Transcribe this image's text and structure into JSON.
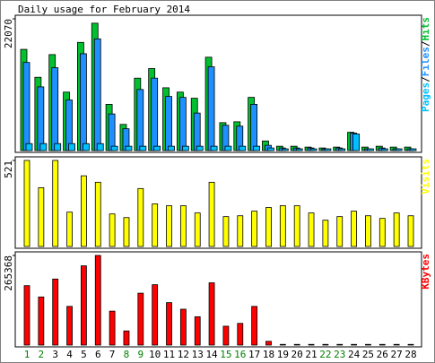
{
  "chart_data": [
    {
      "type": "bar",
      "title": "Daily usage for February 2014",
      "separator": "/",
      "categories": [
        "1",
        "2",
        "3",
        "4",
        "5",
        "6",
        "7",
        "8",
        "9",
        "10",
        "11",
        "12",
        "13",
        "14",
        "15",
        "16",
        "17",
        "18",
        "19",
        "20",
        "21",
        "22",
        "23",
        "24",
        "25",
        "26",
        "27",
        "28"
      ],
      "category_colors": [
        "#008000",
        "#008000",
        "#000000",
        "#000000",
        "#000000",
        "#000000",
        "#000000",
        "#008000",
        "#008000",
        "#000000",
        "#000000",
        "#000000",
        "#000000",
        "#000000",
        "#008000",
        "#008000",
        "#000000",
        "#000000",
        "#000000",
        "#000000",
        "#000000",
        "#008000",
        "#008000",
        "#000000",
        "#000000",
        "#000000",
        "#000000",
        "#000000"
      ],
      "ylim": [
        0,
        22070
      ],
      "yticks": [
        22070
      ],
      "series": [
        {
          "name": "Hits",
          "color": "#00c030",
          "values": [
            16955,
            12277,
            16077,
            9793,
            18124,
            21339,
            7746,
            4385,
            12131,
            13739,
            10523,
            9793,
            8770,
            15639,
            4677,
            4823,
            8916,
            1608,
            731,
            731,
            585,
            438,
            585,
            3069,
            585,
            731,
            585,
            585
          ]
        },
        {
          "name": "Files",
          "color": "#1e90ff",
          "values": [
            14762,
            10670,
            13885,
            8477,
            16224,
            18708,
            6139,
            3654,
            10231,
            12131,
            9062,
            8916,
            6285,
            14031,
            4239,
            4092,
            7746,
            877,
            438,
            438,
            438,
            292,
            438,
            2923,
            292,
            438,
            292,
            292
          ]
        },
        {
          "name": "Pages",
          "color": "#00c0ff",
          "values": [
            1169,
            1169,
            1169,
            1169,
            1169,
            1169,
            731,
            731,
            731,
            731,
            731,
            731,
            731,
            731,
            731,
            731,
            731,
            438,
            292,
            292,
            292,
            292,
            292,
            2777,
            292,
            292,
            292,
            292
          ]
        }
      ]
    },
    {
      "type": "bar",
      "ylim": [
        0,
        521
      ],
      "yticks": [
        521
      ],
      "series": [
        {
          "name": "Visits",
          "color": "#ffff00",
          "values": [
            521,
            356,
            521,
            208,
            428,
            389,
            197,
            175,
            351,
            258,
            247,
            247,
            203,
            389,
            181,
            186,
            214,
            236,
            247,
            247,
            203,
            159,
            181,
            214,
            186,
            170,
            203,
            186
          ]
        }
      ]
    },
    {
      "type": "bar",
      "ylim": [
        0,
        265368
      ],
      "yticks": [
        265368
      ],
      "series": [
        {
          "name": "KBytes",
          "color": "#ff0000",
          "values": [
            175979,
            142460,
            195534,
            114527,
            234641,
            265368,
            100560,
            41900,
            153634,
            178772,
            125701,
            106147,
            83800,
            184361,
            55867,
            64247,
            114527,
            11173,
            2000,
            2000,
            2000,
            2000,
            2000,
            2000,
            2000,
            2000,
            2000,
            2000
          ]
        }
      ]
    }
  ]
}
